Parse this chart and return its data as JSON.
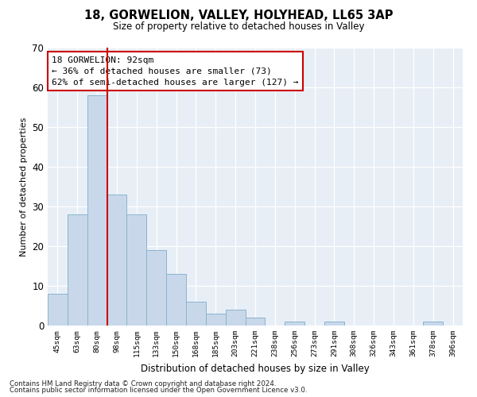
{
  "title1": "18, GORWELION, VALLEY, HOLYHEAD, LL65 3AP",
  "title2": "Size of property relative to detached houses in Valley",
  "xlabel": "Distribution of detached houses by size in Valley",
  "ylabel": "Number of detached properties",
  "bar_labels": [
    "45sqm",
    "63sqm",
    "80sqm",
    "98sqm",
    "115sqm",
    "133sqm",
    "150sqm",
    "168sqm",
    "185sqm",
    "203sqm",
    "221sqm",
    "238sqm",
    "256sqm",
    "273sqm",
    "291sqm",
    "308sqm",
    "326sqm",
    "343sqm",
    "361sqm",
    "378sqm",
    "396sqm"
  ],
  "bar_values": [
    8,
    28,
    58,
    33,
    28,
    19,
    13,
    6,
    3,
    4,
    2,
    0,
    1,
    0,
    1,
    0,
    0,
    0,
    0,
    1,
    0
  ],
  "bar_color": "#c8d8ea",
  "bar_edgecolor": "#8ab4ce",
  "bg_color": "#e8eef6",
  "vline_color": "#cc0000",
  "annotation_text": "18 GORWELION: 92sqm\n← 36% of detached houses are smaller (73)\n62% of semi-detached houses are larger (127) →",
  "annotation_box_edgecolor": "#cc0000",
  "ylim": [
    0,
    70
  ],
  "yticks": [
    0,
    10,
    20,
    30,
    40,
    50,
    60,
    70
  ],
  "footnote1": "Contains HM Land Registry data © Crown copyright and database right 2024.",
  "footnote2": "Contains public sector information licensed under the Open Government Licence v3.0."
}
